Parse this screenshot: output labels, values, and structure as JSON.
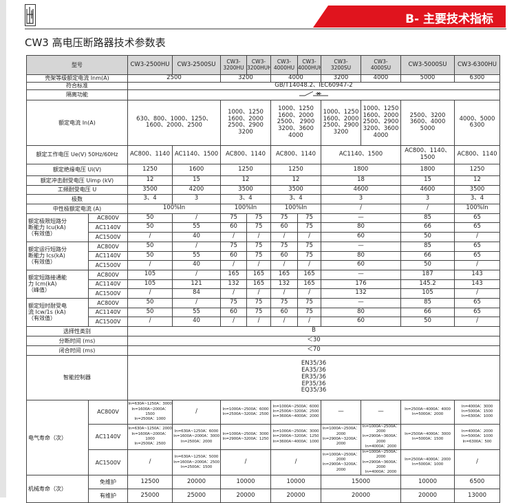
{
  "header": {
    "logo_icon": "breaker-logo-icon",
    "section_banner": "B- 主要技术指标",
    "banner_color": "#e0141e"
  },
  "title": "CW3 高电压断路器技术参数表",
  "table": {
    "rows": [
      {
        "label": "型号",
        "header": true,
        "cells": [
          "CW3-2500HU",
          "CW3-2500SU",
          "CW3-\n3200HU",
          "CW3-\n3200HUH",
          "CW3-\n4000HU",
          "CW3-\n4000HUH",
          "CW3-\n3200SU",
          "CW3-\n4000SU",
          "CW3-5000SU",
          "CW3-6300HU"
        ]
      },
      {
        "label": "壳架等级额定电流 Inm(A)",
        "cells": [
          {
            "t": "2500",
            "cs": 2
          },
          {
            "t": "3200",
            "cs": 2
          },
          {
            "t": "4000",
            "cs": 2
          },
          "3200",
          "4000",
          "5000",
          "6300"
        ]
      },
      {
        "label": "符合标准",
        "cells": [
          {
            "t": "GB/T14048.2、IEC60947-2",
            "cs": 10
          }
        ]
      },
      {
        "label": "隔离功能",
        "cells": [
          {
            "icon": "isolation-switch-symbol-icon",
            "cs": 10
          }
        ]
      },
      {
        "label": "额定电流 In(A)",
        "cells": [
          {
            "t": "630、800、1000、1250、\n1600、2000、2500",
            "cs": 2
          },
          {
            "t": "1000、1250\n1600、2000\n2500、2900\n3200",
            "cs": 2
          },
          {
            "t": "1000、1250\n1600、2000\n2500、 2900\n3200、3600\n4000",
            "cs": 2
          },
          "1000、1250\n1600、2000\n2500、2900\n3200",
          "1000、1250\n1600、2000\n2500、2900\n3200、3600\n4000",
          "2500、3200\n3600、4000\n5000",
          "4000、5000\n6300"
        ]
      },
      {
        "label": "额定工作电压 Ue(V) 50Hz/60Hz",
        "cells": [
          "AC800、1140",
          "AC1140、1500",
          {
            "t": "AC800、1140",
            "cs": 2
          },
          {
            "t": "AC800、1140",
            "cs": 2
          },
          {
            "t": "AC1140、1500",
            "cs": 2
          },
          "AC800、1140、\n1500",
          "AC800、1140"
        ]
      },
      {
        "label": "额定绝缘电压 Ui(V)",
        "cells": [
          "1250",
          "1600",
          {
            "t": "1250",
            "cs": 2
          },
          {
            "t": "1250",
            "cs": 2
          },
          {
            "t": "1800",
            "cs": 2
          },
          "1800",
          "1250"
        ]
      },
      {
        "label": "额定冲击耐受电压 Uimp (kV)",
        "cells": [
          "12",
          "15",
          {
            "t": "12",
            "cs": 2
          },
          {
            "t": "12",
            "cs": 2
          },
          {
            "t": "18",
            "cs": 2
          },
          "15",
          "12"
        ]
      },
      {
        "label": "工频耐受电压 U",
        "cells": [
          "3500",
          "4200",
          {
            "t": "3500",
            "cs": 2
          },
          {
            "t": "3500",
            "cs": 2
          },
          {
            "t": "4600",
            "cs": 2
          },
          "4600",
          "3500"
        ]
      },
      {
        "label": "极数",
        "cells": [
          "3、4",
          "3",
          {
            "t": "3、4",
            "cs": 2
          },
          {
            "t": "3、4",
            "cs": 2
          },
          {
            "t": "3",
            "cs": 2
          },
          "3",
          "3、4"
        ]
      },
      {
        "label": "中性极额定电流 (A)",
        "cells": [
          {
            "t": "100%In",
            "cs": 2
          },
          {
            "t": "100%In",
            "cs": 2
          },
          {
            "t": "100%In",
            "cs": 2
          },
          {
            "t": "/",
            "cs": 2
          },
          "/",
          "100%In"
        ]
      },
      {
        "group": "额定极限短路分\n断能力 Icu(kA)\n（有效值）",
        "rows": [
          {
            "sub": "AC800V",
            "cells": [
              "50",
              "/",
              "75",
              "75",
              "75",
              "75",
              {
                "t": "—",
                "cs": 2
              },
              "85",
              "65"
            ]
          },
          {
            "sub": "AC1140V",
            "cells": [
              "50",
              "55",
              "60",
              "75",
              "60",
              "75",
              {
                "t": "80",
                "cs": 2
              },
              "66",
              "65"
            ]
          },
          {
            "sub": "AC1500V",
            "cells": [
              "/",
              "40",
              "/",
              "/",
              "/",
              "/",
              {
                "t": "60",
                "cs": 2
              },
              "50",
              "/"
            ]
          }
        ]
      },
      {
        "group": "额定运行短路分\n断能力 Ics(kA)\n（有效值）",
        "rows": [
          {
            "sub": "AC800V",
            "cells": [
              "50",
              "/",
              "75",
              "75",
              "75",
              "75",
              {
                "t": "—",
                "cs": 2
              },
              "85",
              "65"
            ]
          },
          {
            "sub": "AC1140V",
            "cells": [
              "50",
              "55",
              "60",
              "75",
              "60",
              "75",
              {
                "t": "80",
                "cs": 2
              },
              "66",
              "65"
            ]
          },
          {
            "sub": "AC1500V",
            "cells": [
              "/",
              "40",
              "/",
              "/",
              "/",
              "/",
              {
                "t": "60",
                "cs": 2
              },
              "50",
              "/"
            ]
          }
        ]
      },
      {
        "group": "额定短路接通能\n力 Icm(kA)\n（峰值）",
        "rows": [
          {
            "sub": "AC800V",
            "cells": [
              "105",
              "/",
              "165",
              "165",
              "165",
              "165",
              {
                "t": "—",
                "cs": 2
              },
              "187",
              "143"
            ]
          },
          {
            "sub": "AC1140V",
            "cells": [
              "105",
              "121",
              "132",
              "165",
              "132",
              "165",
              {
                "t": "176",
                "cs": 2
              },
              "145.2",
              "143"
            ]
          },
          {
            "sub": "AC1500V",
            "cells": [
              "/",
              "84",
              "/",
              "/",
              "/",
              "/",
              {
                "t": "132",
                "cs": 2
              },
              "105",
              "/"
            ]
          }
        ]
      },
      {
        "group": "额定短时耐受电\n流 Icw/1s (kA)\n（有效值）",
        "rows": [
          {
            "sub": "AC800V",
            "cells": [
              "50",
              "/",
              "75",
              "75",
              "75",
              "75",
              {
                "t": "—",
                "cs": 2
              },
              "85",
              "65"
            ]
          },
          {
            "sub": "AC1140V",
            "cells": [
              "50",
              "55",
              "60",
              "75",
              "60",
              "75",
              {
                "t": "80",
                "cs": 2
              },
              "66",
              "65"
            ]
          },
          {
            "sub": "AC1500V",
            "cells": [
              "/",
              "40",
              "/",
              "/",
              "/",
              "/",
              {
                "t": "60",
                "cs": 2
              },
              "50",
              "/"
            ]
          }
        ]
      },
      {
        "label": "选择性类别",
        "cells": [
          {
            "t": "B",
            "cs": 10
          }
        ]
      },
      {
        "label": "分断时间 (ms)",
        "cells": [
          {
            "t": "＜30",
            "cs": 10
          }
        ]
      },
      {
        "label": "闭合时间 (ms)",
        "cells": [
          {
            "t": "＜70",
            "cs": 10
          }
        ]
      },
      {
        "label": "智能控制器",
        "cells": [
          {
            "t": "EN35/36\nEA35/36\nER35/36\nEP35/36\nEQ35/36",
            "cs": 10
          }
        ]
      },
      {
        "group": "电气寿命（次）",
        "small": true,
        "rows": [
          {
            "sub": "AC800V",
            "cells": [
              "In=630A~1250A：3000\nIn=1600A~2000A：1500\nIn=2500A：1000",
              "/",
              {
                "t": "In=1000A~2500A：6000\nIn=2500A~3200A：2500",
                "cs": 2
              },
              {
                "t": "In=1000A~2500A：6000\nIn=2500A~3200A：2500\nIn=3600A~4000A：2000",
                "cs": 2
              },
              "—",
              "—",
              "In=2500A~4000A：4000\nIn=5000A：2000",
              "In=4000A：3000\nIn=5000A：1500\nIn=6300A：1000"
            ]
          },
          {
            "sub": "AC1140V",
            "cells": [
              "In=630A~1250A：2000\nIn=1600A~2000A：1000\nIn=2500A：2500",
              "In=630A~1250A：6000\nIn=1600A~2000A：3000\nIn=2500A：2000",
              {
                "t": "In=1000A~2500A：3000\nIn=2900A~3200A：1250",
                "cs": 2
              },
              {
                "t": "In=1000A~2500A：3000\nIn=2900A~3200A：1250\nIn=3600A~4000A：1000",
                "cs": 2
              },
              "In=1000A~2500A：2000\nIn=2900A~3200A：2000",
              "In=1000A~2500A：2000\nIn=2900A~3600A：2000\nIn=4000A：2000",
              "In=2500A~4000A：3000\nIn=5000A：1500",
              "In=4000A：2000\nIn=5000A：1000\nIn=6300A：500"
            ]
          },
          {
            "sub": "AC1500V",
            "cells": [
              "/",
              "In=630A~1250A：5000\nIn=1600A~2000A：2500\nIn=2500A：1500",
              {
                "t": "/",
                "cs": 2
              },
              {
                "t": "/",
                "cs": 2
              },
              "In=1000A~2500A：2000\nIn=2900A~3200A：2000",
              "In=1000A~2500A：2000\nIn=2900A~3600A：2000\nIn=4000A：2000",
              "In=2500A~4000A：2000\nIn=5000A：1000",
              "/"
            ]
          }
        ]
      },
      {
        "group": "机械寿命（次）",
        "rows": [
          {
            "sub": "免维护",
            "cells": [
              "12500",
              "20000",
              {
                "t": "10000",
                "cs": 2
              },
              {
                "t": "10000",
                "cs": 2
              },
              {
                "t": "15000",
                "cs": 2
              },
              "10000",
              "6500"
            ]
          },
          {
            "sub": "有维护",
            "cells": [
              "25000",
              "25000",
              {
                "t": "20000",
                "cs": 2
              },
              {
                "t": "20000",
                "cs": 2
              },
              {
                "t": "20000",
                "cs": 2
              },
              "20000",
              "13000"
            ]
          }
        ]
      }
    ]
  }
}
